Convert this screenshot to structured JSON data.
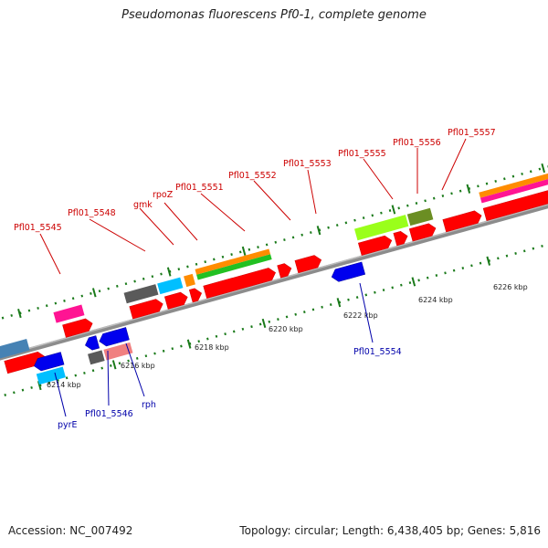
{
  "title": "Pseudomonas fluorescens Pf0-1, complete genome",
  "footer": {
    "accession": "Accession: NC_007492",
    "summary": "Topology: circular; Length: 6,438,405 bp; Genes: 5,816"
  },
  "colors": {
    "forward_label": "#cc0000",
    "reverse_label": "#0000aa",
    "backbone": "#8c8c8c",
    "tick": "#1a7a1a"
  },
  "ticks": [
    {
      "label": "6214 kbp"
    },
    {
      "label": "6216 kbp"
    },
    {
      "label": "6218 kbp"
    },
    {
      "label": "6220 kbp"
    },
    {
      "label": "6222 kbp"
    },
    {
      "label": "6224 kbp"
    },
    {
      "label": "6226 kbp"
    }
  ],
  "genes": {
    "forward": [
      {
        "name": "Pfl01_5545"
      },
      {
        "name": "Pfl01_5548"
      },
      {
        "name": "gmk"
      },
      {
        "name": "rpoZ"
      },
      {
        "name": "Pfl01_5551"
      },
      {
        "name": "Pfl01_5552"
      },
      {
        "name": "Pfl01_5553"
      },
      {
        "name": "Pfl01_5555"
      },
      {
        "name": "Pfl01_5556"
      },
      {
        "name": "Pfl01_5557"
      }
    ],
    "reverse": [
      {
        "name": "pyrE"
      },
      {
        "name": "Pfl01_5546"
      },
      {
        "name": "rph"
      },
      {
        "name": "Pfl01_5554"
      }
    ]
  }
}
